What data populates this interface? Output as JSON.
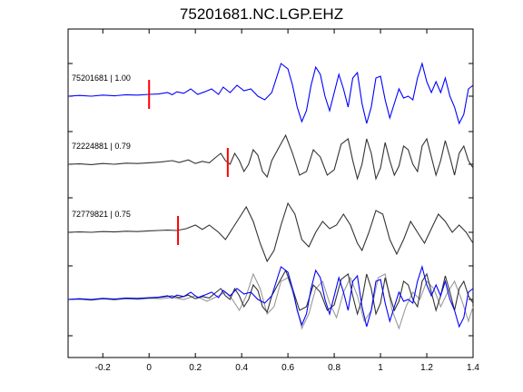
{
  "chart_data": {
    "type": "line",
    "title": "75201681.NC.LGP.EHZ",
    "xlabel": "",
    "ylabel": "",
    "xlim": [
      -0.35,
      1.4
    ],
    "xticks": [
      -0.2,
      0,
      0.2,
      0.4,
      0.6,
      0.8,
      1,
      1.2,
      1.4
    ],
    "xtick_labels": [
      "-0.2",
      "0",
      "0.2",
      "0.4",
      "0.6",
      "0.8",
      "1",
      "1.2",
      "1.4"
    ],
    "grid": false,
    "traces": [
      {
        "label": "75201681 | 1.00",
        "color": "#0000ff",
        "pick_time": 0.0,
        "samples": [
          [
            -0.35,
            0
          ],
          [
            -0.3,
            0.02
          ],
          [
            -0.25,
            0
          ],
          [
            -0.2,
            0.03
          ],
          [
            -0.15,
            0.01
          ],
          [
            -0.1,
            0.04
          ],
          [
            -0.05,
            0.03
          ],
          [
            0.0,
            0.05
          ],
          [
            0.04,
            0.06
          ],
          [
            0.08,
            0.1
          ],
          [
            0.1,
            0.04
          ],
          [
            0.12,
            0.12
          ],
          [
            0.15,
            0.08
          ],
          [
            0.18,
            0.2
          ],
          [
            0.21,
            0.05
          ],
          [
            0.24,
            0.12
          ],
          [
            0.27,
            0.2
          ],
          [
            0.3,
            0.05
          ],
          [
            0.32,
            0.25
          ],
          [
            0.35,
            0.1
          ],
          [
            0.38,
            0.3
          ],
          [
            0.41,
            0.15
          ],
          [
            0.44,
            0.2
          ],
          [
            0.47,
            0.0
          ],
          [
            0.5,
            -0.1
          ],
          [
            0.53,
            0.1
          ],
          [
            0.55,
            0.5
          ],
          [
            0.57,
            0.9
          ],
          [
            0.6,
            0.75
          ],
          [
            0.62,
            0.3
          ],
          [
            0.64,
            -0.3
          ],
          [
            0.66,
            -0.7
          ],
          [
            0.68,
            -0.4
          ],
          [
            0.7,
            0.3
          ],
          [
            0.72,
            0.8
          ],
          [
            0.74,
            0.6
          ],
          [
            0.76,
            0.0
          ],
          [
            0.78,
            -0.4
          ],
          [
            0.8,
            0.1
          ],
          [
            0.82,
            0.6
          ],
          [
            0.84,
            0.2
          ],
          [
            0.86,
            -0.3
          ],
          [
            0.88,
            0.5
          ],
          [
            0.9,
            0.65
          ],
          [
            0.92,
            -0.2
          ],
          [
            0.94,
            -0.75
          ],
          [
            0.96,
            -0.3
          ],
          [
            0.98,
            0.5
          ],
          [
            1.0,
            0.55
          ],
          [
            1.02,
            -0.1
          ],
          [
            1.04,
            -0.6
          ],
          [
            1.06,
            -0.2
          ],
          [
            1.08,
            0.2
          ],
          [
            1.1,
            -0.05
          ],
          [
            1.12,
            0.0
          ],
          [
            1.14,
            -0.1
          ],
          [
            1.16,
            0.5
          ],
          [
            1.18,
            0.9
          ],
          [
            1.2,
            0.4
          ],
          [
            1.22,
            0.1
          ],
          [
            1.24,
            0.4
          ],
          [
            1.26,
            0.1
          ],
          [
            1.28,
            0.5
          ],
          [
            1.3,
            0.0
          ],
          [
            1.32,
            -0.3
          ],
          [
            1.34,
            -0.75
          ],
          [
            1.36,
            -0.5
          ],
          [
            1.38,
            0.2
          ],
          [
            1.4,
            0.3
          ]
        ]
      },
      {
        "label": "72224881 | 0.79",
        "color": "#333333",
        "pick_time": 0.34,
        "samples": [
          [
            -0.35,
            0
          ],
          [
            -0.3,
            0.01
          ],
          [
            -0.25,
            -0.01
          ],
          [
            -0.2,
            0.02
          ],
          [
            -0.15,
            0
          ],
          [
            -0.1,
            0.03
          ],
          [
            -0.05,
            0.02
          ],
          [
            0.0,
            0.04
          ],
          [
            0.05,
            0.06
          ],
          [
            0.1,
            0.1
          ],
          [
            0.13,
            0.05
          ],
          [
            0.17,
            0.12
          ],
          [
            0.2,
            0.02
          ],
          [
            0.23,
            0.08
          ],
          [
            0.26,
            0.04
          ],
          [
            0.29,
            0.2
          ],
          [
            0.31,
            0.3
          ],
          [
            0.33,
            0.1
          ],
          [
            0.35,
            0.0
          ],
          [
            0.37,
            0.3
          ],
          [
            0.39,
            0.1
          ],
          [
            0.41,
            -0.2
          ],
          [
            0.43,
            0.0
          ],
          [
            0.45,
            0.4
          ],
          [
            0.47,
            0.25
          ],
          [
            0.49,
            -0.2
          ],
          [
            0.51,
            -0.35
          ],
          [
            0.53,
            0.1
          ],
          [
            0.56,
            0.45
          ],
          [
            0.59,
            0.8
          ],
          [
            0.62,
            0.3
          ],
          [
            0.65,
            -0.3
          ],
          [
            0.68,
            -0.2
          ],
          [
            0.71,
            0.4
          ],
          [
            0.74,
            0.2
          ],
          [
            0.77,
            -0.3
          ],
          [
            0.8,
            -0.15
          ],
          [
            0.83,
            0.55
          ],
          [
            0.86,
            0.7
          ],
          [
            0.88,
            0.1
          ],
          [
            0.9,
            -0.4
          ],
          [
            0.92,
            0.0
          ],
          [
            0.94,
            0.7
          ],
          [
            0.96,
            0.3
          ],
          [
            0.98,
            -0.4
          ],
          [
            1.0,
            -0.1
          ],
          [
            1.02,
            0.6
          ],
          [
            1.04,
            0.1
          ],
          [
            1.06,
            -0.3
          ],
          [
            1.08,
            -0.05
          ],
          [
            1.1,
            0.5
          ],
          [
            1.12,
            0.4
          ],
          [
            1.14,
            0.0
          ],
          [
            1.16,
            -0.2
          ],
          [
            1.18,
            0.5
          ],
          [
            1.2,
            0.7
          ],
          [
            1.22,
            0.2
          ],
          [
            1.24,
            -0.3
          ],
          [
            1.26,
            0.1
          ],
          [
            1.28,
            0.65
          ],
          [
            1.3,
            0.2
          ],
          [
            1.32,
            -0.3
          ],
          [
            1.34,
            0.3
          ],
          [
            1.36,
            0.5
          ],
          [
            1.38,
            0.1
          ],
          [
            1.4,
            -0.1
          ]
        ]
      },
      {
        "label": "72779821 | 0.75",
        "color": "#333333",
        "pick_time": 0.125,
        "samples": [
          [
            -0.35,
            0
          ],
          [
            -0.3,
            0.01
          ],
          [
            -0.25,
            0
          ],
          [
            -0.2,
            0.02
          ],
          [
            -0.15,
            0.01
          ],
          [
            -0.1,
            0.03
          ],
          [
            -0.05,
            0.02
          ],
          [
            0.0,
            0.04
          ],
          [
            0.04,
            0.05
          ],
          [
            0.08,
            0.06
          ],
          [
            0.12,
            0.05
          ],
          [
            0.16,
            0.1
          ],
          [
            0.2,
            0.2
          ],
          [
            0.23,
            0.08
          ],
          [
            0.26,
            0.2
          ],
          [
            0.3,
            0.0
          ],
          [
            0.33,
            -0.2
          ],
          [
            0.36,
            0.1
          ],
          [
            0.39,
            0.4
          ],
          [
            0.42,
            0.7
          ],
          [
            0.45,
            0.3
          ],
          [
            0.48,
            -0.3
          ],
          [
            0.51,
            -0.8
          ],
          [
            0.54,
            -0.5
          ],
          [
            0.57,
            0.2
          ],
          [
            0.6,
            0.8
          ],
          [
            0.63,
            0.5
          ],
          [
            0.66,
            -0.2
          ],
          [
            0.69,
            -0.4
          ],
          [
            0.72,
            0.0
          ],
          [
            0.75,
            0.3
          ],
          [
            0.78,
            0.1
          ],
          [
            0.81,
            0.2
          ],
          [
            0.84,
            0.5
          ],
          [
            0.87,
            0.2
          ],
          [
            0.9,
            -0.3
          ],
          [
            0.92,
            -0.5
          ],
          [
            0.95,
            0.0
          ],
          [
            0.98,
            0.6
          ],
          [
            1.01,
            0.5
          ],
          [
            1.04,
            -0.2
          ],
          [
            1.07,
            -0.6
          ],
          [
            1.1,
            -0.2
          ],
          [
            1.13,
            0.3
          ],
          [
            1.16,
            0.0
          ],
          [
            1.19,
            -0.3
          ],
          [
            1.22,
            0.1
          ],
          [
            1.25,
            0.5
          ],
          [
            1.28,
            0.3
          ],
          [
            1.31,
            0.0
          ],
          [
            1.34,
            0.2
          ],
          [
            1.37,
            0.0
          ],
          [
            1.4,
            -0.3
          ]
        ]
      },
      {
        "label": "",
        "color": "#999999",
        "pick_time": null,
        "samples": [
          [
            -0.35,
            0
          ],
          [
            -0.3,
            0.01
          ],
          [
            -0.25,
            -0.02
          ],
          [
            -0.2,
            0.02
          ],
          [
            -0.15,
            -0.01
          ],
          [
            -0.1,
            0.02
          ],
          [
            -0.05,
            0
          ],
          [
            0.0,
            0.03
          ],
          [
            0.05,
            0.02
          ],
          [
            0.1,
            0.05
          ],
          [
            0.15,
            0.0
          ],
          [
            0.2,
            0.1
          ],
          [
            0.25,
            -0.05
          ],
          [
            0.3,
            0.1
          ],
          [
            0.33,
            0.2
          ],
          [
            0.36,
            0.0
          ],
          [
            0.39,
            -0.3
          ],
          [
            0.42,
            0.1
          ],
          [
            0.45,
            0.7
          ],
          [
            0.48,
            0.3
          ],
          [
            0.51,
            -0.4
          ],
          [
            0.54,
            -0.2
          ],
          [
            0.57,
            0.5
          ],
          [
            0.6,
            0.6
          ],
          [
            0.63,
            0.0
          ],
          [
            0.66,
            -0.8
          ],
          [
            0.69,
            -0.4
          ],
          [
            0.72,
            0.3
          ],
          [
            0.75,
            0.5
          ],
          [
            0.78,
            -0.1
          ],
          [
            0.81,
            -0.5
          ],
          [
            0.84,
            0.2
          ],
          [
            0.87,
            0.6
          ],
          [
            0.9,
            0.1
          ],
          [
            0.93,
            -0.6
          ],
          [
            0.96,
            -0.3
          ],
          [
            0.99,
            0.6
          ],
          [
            1.02,
            0.7
          ],
          [
            1.05,
            -0.3
          ],
          [
            1.08,
            -0.8
          ],
          [
            1.11,
            -0.2
          ],
          [
            1.14,
            0.2
          ],
          [
            1.17,
            0.0
          ],
          [
            1.2,
            0.5
          ],
          [
            1.23,
            0.3
          ],
          [
            1.26,
            -0.2
          ],
          [
            1.29,
            0.2
          ],
          [
            1.32,
            0.5
          ],
          [
            1.35,
            0.0
          ],
          [
            1.38,
            -0.6
          ],
          [
            1.4,
            -0.2
          ]
        ]
      }
    ]
  }
}
